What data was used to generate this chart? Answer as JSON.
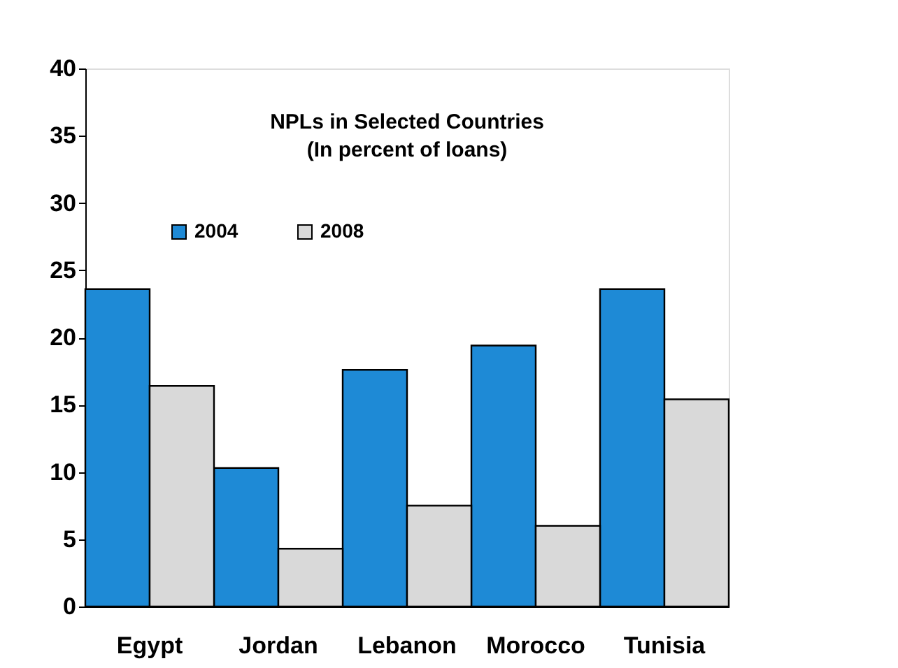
{
  "chart_data": {
    "type": "bar",
    "title": [
      "NPLs in Selected Countries",
      "(In percent of loans)"
    ],
    "categories": [
      "Egypt",
      "Jordan",
      "Lebanon",
      "Morocco",
      "Tunisia"
    ],
    "series": [
      {
        "name": "2004",
        "color": "#1e8ad6",
        "values": [
          23.6,
          10.3,
          17.6,
          19.4,
          23.6
        ]
      },
      {
        "name": "2008",
        "color": "#d9d9d9",
        "values": [
          16.4,
          4.3,
          7.5,
          6.0,
          15.4
        ]
      }
    ],
    "ylim": [
      0,
      40
    ],
    "yticks": [
      0,
      5,
      10,
      15,
      20,
      25,
      30,
      35,
      40
    ],
    "grid": false,
    "legend": "top left"
  }
}
